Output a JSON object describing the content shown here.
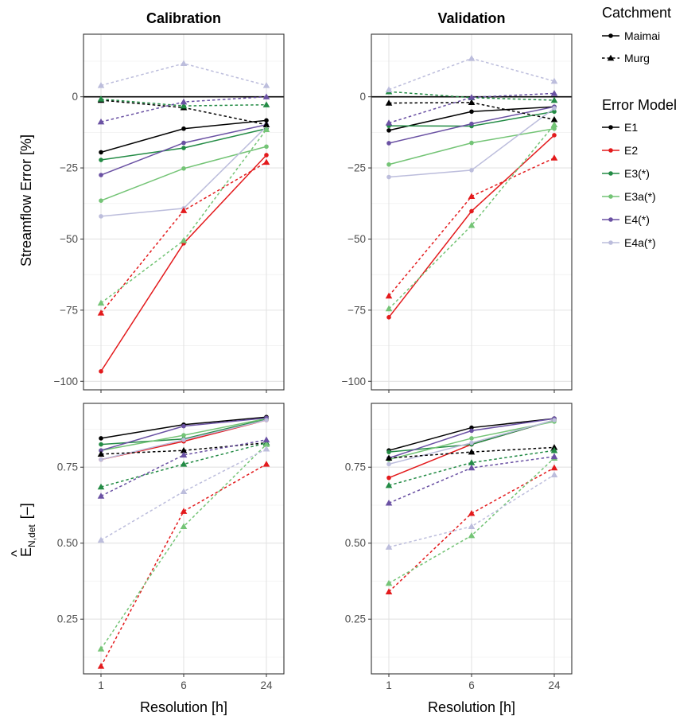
{
  "chart_data": {
    "type": "line",
    "columns": [
      "Calibration",
      "Validation"
    ],
    "x": [
      1,
      6,
      24
    ],
    "xlabel": "Resolution [h]",
    "row_labels": {
      "top": "Streamflow Error [%]",
      "bottom_main": "E",
      "bottom_hat": "^",
      "bottom_sub": "N,det",
      "bottom_unit": "[–]"
    },
    "top_ylim": [
      -103,
      22
    ],
    "top_yticks": [
      0,
      -25,
      -50,
      -75,
      -100
    ],
    "top_ytick_labels": [
      "0",
      "−25",
      "−50",
      "−75",
      "−100"
    ],
    "bottom_ylim": [
      0.07,
      0.96
    ],
    "bottom_yticks": [
      0.25,
      0.5,
      0.75
    ],
    "bottom_ytick_labels": [
      "0.25",
      "0.50",
      "0.75"
    ],
    "xtick_labels": [
      "1",
      "6",
      "24"
    ],
    "grid": true,
    "legend_position": "right",
    "legend": {
      "catchment_title": "Catchment",
      "catchments": [
        {
          "name": "Maimai",
          "linestyle": "solid",
          "marker": "circle"
        },
        {
          "name": "Murg",
          "linestyle": "dashed",
          "marker": "triangle"
        }
      ],
      "model_title": "Error Model",
      "models": [
        {
          "name": "E1",
          "color": "#000000"
        },
        {
          "name": "E2",
          "color": "#e31a1c"
        },
        {
          "name": "E3(*)",
          "color": "#238b45"
        },
        {
          "name": "E3a(*)",
          "color": "#74c476"
        },
        {
          "name": "E4(*)",
          "color": "#6a51a3"
        },
        {
          "name": "E4a(*)",
          "color": "#bcbddc"
        }
      ]
    },
    "panels": [
      {
        "column": "Calibration",
        "metric": "streamflow_error",
        "series": [
          {
            "model": "E1",
            "catchment": "Maimai",
            "values": [
              -19.5,
              -11.2,
              -8.3
            ]
          },
          {
            "model": "E2",
            "catchment": "Maimai",
            "values": [
              -96.5,
              -51.5,
              -20.5
            ]
          },
          {
            "model": "E3(*)",
            "catchment": "Maimai",
            "values": [
              -22.2,
              -18.0,
              -11.2
            ]
          },
          {
            "model": "E3a(*)",
            "catchment": "Maimai",
            "values": [
              -36.5,
              -25.2,
              -17.5
            ]
          },
          {
            "model": "E4(*)",
            "catchment": "Maimai",
            "values": [
              -27.5,
              -16.2,
              -9.8
            ]
          },
          {
            "model": "E4a(*)",
            "catchment": "Maimai",
            "values": [
              -42.0,
              -39.2,
              -10.5
            ]
          },
          {
            "model": "E1",
            "catchment": "Murg",
            "values": [
              -1.2,
              -3.8,
              -9.8
            ]
          },
          {
            "model": "E2",
            "catchment": "Murg",
            "values": [
              -76.0,
              -40.0,
              -23.0
            ]
          },
          {
            "model": "E3(*)",
            "catchment": "Murg",
            "values": [
              -0.8,
              -3.2,
              -2.8
            ]
          },
          {
            "model": "E3a(*)",
            "catchment": "Murg",
            "values": [
              -72.5,
              -50.5,
              -11.5
            ]
          },
          {
            "model": "E4(*)",
            "catchment": "Murg",
            "values": [
              -8.8,
              -1.8,
              0.0
            ]
          },
          {
            "model": "E4a(*)",
            "catchment": "Murg",
            "values": [
              4.0,
              11.7,
              4.0
            ]
          }
        ]
      },
      {
        "column": "Validation",
        "metric": "streamflow_error",
        "series": [
          {
            "model": "E1",
            "catchment": "Maimai",
            "values": [
              -11.8,
              -5.2,
              -3.5
            ]
          },
          {
            "model": "E2",
            "catchment": "Maimai",
            "values": [
              -77.5,
              -40.2,
              -13.5
            ]
          },
          {
            "model": "E3(*)",
            "catchment": "Maimai",
            "values": [
              -10.2,
              -10.3,
              -5.2
            ]
          },
          {
            "model": "E3a(*)",
            "catchment": "Maimai",
            "values": [
              -23.8,
              -16.2,
              -11.2
            ]
          },
          {
            "model": "E4(*)",
            "catchment": "Maimai",
            "values": [
              -16.3,
              -9.5,
              -3.5
            ]
          },
          {
            "model": "E4a(*)",
            "catchment": "Maimai",
            "values": [
              -28.2,
              -25.8,
              -4.0
            ]
          },
          {
            "model": "E1",
            "catchment": "Murg",
            "values": [
              -2.2,
              -2.0,
              -8.0
            ]
          },
          {
            "model": "E2",
            "catchment": "Murg",
            "values": [
              -70.0,
              -35.0,
              -21.5
            ]
          },
          {
            "model": "E3(*)",
            "catchment": "Murg",
            "values": [
              1.8,
              -0.3,
              -1.2
            ]
          },
          {
            "model": "E3a(*)",
            "catchment": "Murg",
            "values": [
              -74.5,
              -45.2,
              -9.8
            ]
          },
          {
            "model": "E4(*)",
            "catchment": "Murg",
            "values": [
              -9.2,
              -0.2,
              1.2
            ]
          },
          {
            "model": "E4a(*)",
            "catchment": "Murg",
            "values": [
              2.5,
              13.5,
              5.5
            ]
          }
        ]
      },
      {
        "column": "Calibration",
        "metric": "E_N_det",
        "series": [
          {
            "model": "E1",
            "catchment": "Maimai",
            "values": [
              0.845,
              0.89,
              0.915
            ]
          },
          {
            "model": "E2",
            "catchment": "Maimai",
            "values": [
              0.775,
              0.835,
              0.905
            ]
          },
          {
            "model": "E3(*)",
            "catchment": "Maimai",
            "values": [
              0.825,
              0.843,
              0.908
            ]
          },
          {
            "model": "E3a(*)",
            "catchment": "Maimai",
            "values": [
              0.805,
              0.855,
              0.91
            ]
          },
          {
            "model": "E4(*)",
            "catchment": "Maimai",
            "values": [
              0.805,
              0.885,
              0.912
            ]
          },
          {
            "model": "E4a(*)",
            "catchment": "Maimai",
            "values": [
              0.775,
              0.84,
              0.905
            ]
          },
          {
            "model": "E1",
            "catchment": "Murg",
            "values": [
              0.793,
              0.805,
              0.83
            ]
          },
          {
            "model": "E2",
            "catchment": "Murg",
            "values": [
              0.095,
              0.605,
              0.76
            ]
          },
          {
            "model": "E3(*)",
            "catchment": "Murg",
            "values": [
              0.685,
              0.76,
              0.83
            ]
          },
          {
            "model": "E3a(*)",
            "catchment": "Murg",
            "values": [
              0.152,
              0.555,
              0.825
            ]
          },
          {
            "model": "E4(*)",
            "catchment": "Murg",
            "values": [
              0.655,
              0.79,
              0.84
            ]
          },
          {
            "model": "E4a(*)",
            "catchment": "Murg",
            "values": [
              0.51,
              0.67,
              0.81
            ]
          }
        ]
      },
      {
        "column": "Validation",
        "metric": "E_N_det",
        "series": [
          {
            "model": "E1",
            "catchment": "Maimai",
            "values": [
              0.805,
              0.88,
              0.91
            ]
          },
          {
            "model": "E2",
            "catchment": "Maimai",
            "values": [
              0.715,
              0.825,
              0.905
            ]
          },
          {
            "model": "E3(*)",
            "catchment": "Maimai",
            "values": [
              0.8,
              0.825,
              0.905
            ]
          },
          {
            "model": "E3a(*)",
            "catchment": "Maimai",
            "values": [
              0.775,
              0.845,
              0.9
            ]
          },
          {
            "model": "E4(*)",
            "catchment": "Maimai",
            "values": [
              0.78,
              0.87,
              0.91
            ]
          },
          {
            "model": "E4a(*)",
            "catchment": "Maimai",
            "values": [
              0.76,
              0.83,
              0.905
            ]
          },
          {
            "model": "E1",
            "catchment": "Murg",
            "values": [
              0.78,
              0.8,
              0.815
            ]
          },
          {
            "model": "E2",
            "catchment": "Murg",
            "values": [
              0.34,
              0.598,
              0.748
            ]
          },
          {
            "model": "E3(*)",
            "catchment": "Murg",
            "values": [
              0.69,
              0.765,
              0.805
            ]
          },
          {
            "model": "E3a(*)",
            "catchment": "Murg",
            "values": [
              0.368,
              0.525,
              0.78
            ]
          },
          {
            "model": "E4(*)",
            "catchment": "Murg",
            "values": [
              0.632,
              0.748,
              0.785
            ]
          },
          {
            "model": "E4a(*)",
            "catchment": "Murg",
            "values": [
              0.487,
              0.555,
              0.725
            ]
          }
        ]
      }
    ]
  }
}
